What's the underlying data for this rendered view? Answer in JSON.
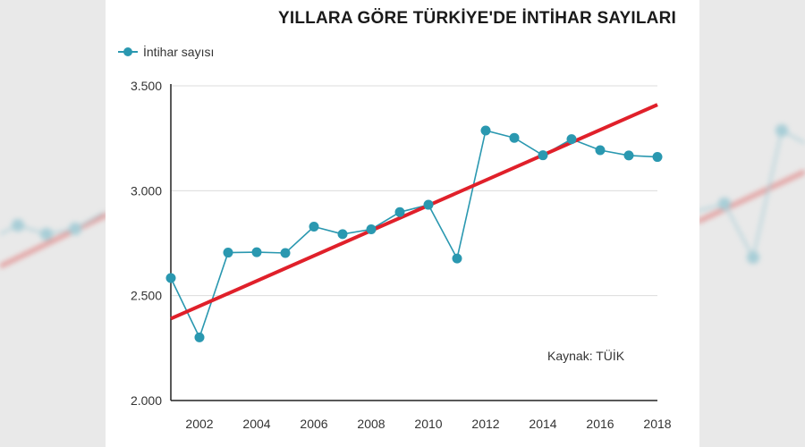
{
  "chart_data": {
    "type": "line",
    "title": "YILLARA GÖRE TÜRKİYE'DE İNTİHAR SAYILARI",
    "x": [
      2001,
      2002,
      2003,
      2004,
      2005,
      2006,
      2007,
      2008,
      2009,
      2010,
      2011,
      2012,
      2013,
      2014,
      2015,
      2016,
      2017,
      2018
    ],
    "series": [
      {
        "name": "İntihar sayısı",
        "color": "#2a98b0",
        "values": [
          2584,
          2301,
          2705,
          2707,
          2703,
          2829,
          2793,
          2816,
          2898,
          2933,
          2677,
          3287,
          3252,
          3169,
          3246,
          3193,
          3168,
          3161
        ]
      }
    ],
    "trendline": {
      "color": "#e0202a",
      "start": [
        2001,
        2390
      ],
      "end": [
        2018,
        3410
      ]
    },
    "xticks": [
      "2002",
      "2004",
      "2006",
      "2008",
      "2010",
      "2012",
      "2014",
      "2016",
      "2018"
    ],
    "yticks": [
      "2.000",
      "2.500",
      "3.000",
      "3.500"
    ],
    "xlim": [
      2001,
      2018
    ],
    "ylim": [
      2000,
      3600
    ],
    "grid": true,
    "legend_position": "top-left",
    "annotation": "Kaynak: TÜİK"
  }
}
